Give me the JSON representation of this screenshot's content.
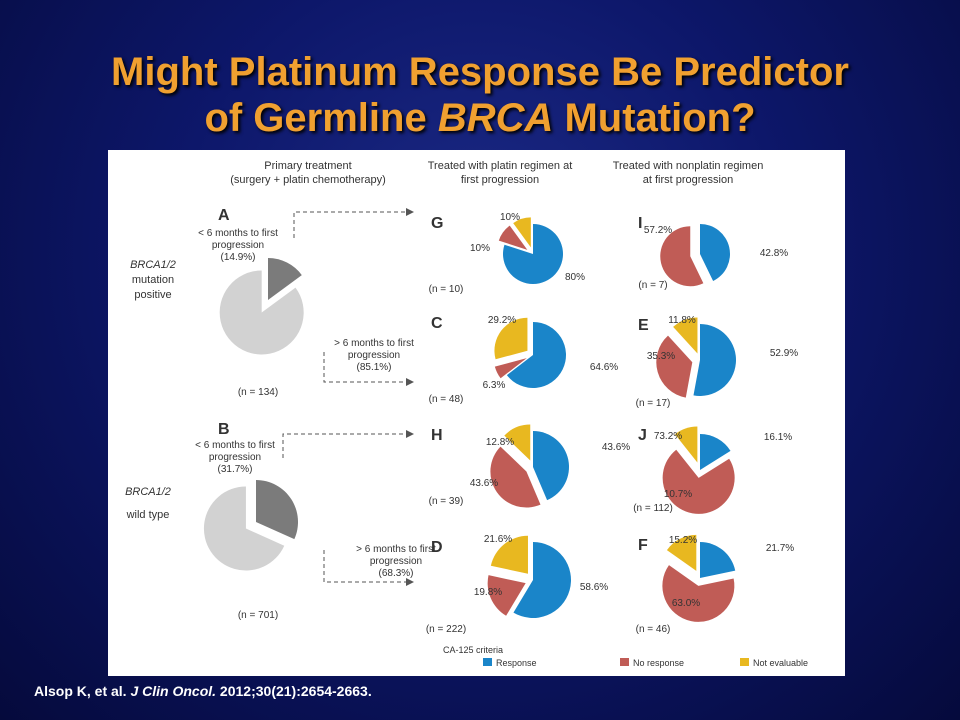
{
  "title": {
    "line1": "Might Platinum Response Be Predictor",
    "line2_prefix": "of Germline ",
    "line2_italic": "BRCA",
    "line2_suffix": " Mutation?"
  },
  "citation": {
    "prefix": "Alsop K, et al. ",
    "journal": "J Clin Oncol.",
    "suffix": " 2012;30(21):2654-2663."
  },
  "colors": {
    "response": "#1a85c9",
    "no_response": "#c05c56",
    "not_evaluable": "#e8b820",
    "short_progression": "#7b7b7b",
    "long_progression": "#d2d2d2",
    "arrow": "#555555"
  },
  "headers": {
    "primary": [
      "Primary treatment",
      "(surgery + platin chemotherapy)"
    ],
    "platin": [
      "Treated with platin regimen at",
      "first progression"
    ],
    "nonplatin": [
      "Treated with nonplatin regimen",
      "at first progression"
    ]
  },
  "row_labels": {
    "mutation": [
      "BRCA1/2",
      "mutation",
      "positive"
    ],
    "wildtype": [
      "BRCA1/2",
      "wild type"
    ]
  },
  "legend": {
    "title": "CA-125 criteria",
    "items": [
      "Response",
      "No response",
      "Not evaluable"
    ]
  },
  "chart_data": [
    {
      "type": "pie",
      "panel": "A",
      "n": "(n = 134)",
      "categories": [
        "< 6 months to first progression",
        "> 6 months to first progression"
      ],
      "values": [
        14.9,
        85.1
      ],
      "labels": [
        "< 6 months to first\nprogression\n(14.9%)",
        "> 6 months to first\nprogression\n(85.1%)"
      ]
    },
    {
      "type": "pie",
      "panel": "B",
      "n": "(n = 701)",
      "categories": [
        "< 6 months to first progression",
        "> 6 months to first progression"
      ],
      "values": [
        31.7,
        68.3
      ],
      "labels": [
        "< 6 months to first\nprogression\n(31.7%)",
        "> 6 months to first\nprogression\n(68.3%)"
      ]
    },
    {
      "type": "pie",
      "panel": "G",
      "n": "(n = 10)",
      "categories": [
        "Response",
        "No response",
        "Not evaluable"
      ],
      "values": [
        80,
        10,
        10
      ],
      "labels": [
        "80%",
        "10%",
        "10%"
      ]
    },
    {
      "type": "pie",
      "panel": "C",
      "n": "(n = 48)",
      "categories": [
        "Response",
        "No response",
        "Not evaluable"
      ],
      "values": [
        64.6,
        6.3,
        29.2
      ],
      "labels": [
        "64.6%",
        "6.3%",
        "29.2%"
      ]
    },
    {
      "type": "pie",
      "panel": "H",
      "n": "(n = 39)",
      "categories": [
        "Response",
        "No response",
        "Not evaluable"
      ],
      "values": [
        43.6,
        43.6,
        12.8
      ],
      "labels": [
        "43.6%",
        "43.6%",
        "12.8%"
      ]
    },
    {
      "type": "pie",
      "panel": "D",
      "n": "(n = 222)",
      "categories": [
        "Response",
        "No response",
        "Not evaluable"
      ],
      "values": [
        58.6,
        19.8,
        21.6
      ],
      "labels": [
        "58.6%",
        "19.8%",
        "21.6%"
      ]
    },
    {
      "type": "pie",
      "panel": "I",
      "n": "(n = 7)",
      "categories": [
        "Response",
        "No response"
      ],
      "values": [
        42.8,
        57.2
      ],
      "labels": [
        "42.8%",
        "57.2%"
      ]
    },
    {
      "type": "pie",
      "panel": "E",
      "n": "(n = 17)",
      "categories": [
        "Response",
        "No response",
        "Not evaluable"
      ],
      "values": [
        52.9,
        35.3,
        11.8
      ],
      "labels": [
        "52.9%",
        "35.3%",
        "11.8%"
      ]
    },
    {
      "type": "pie",
      "panel": "J",
      "n": "(n = 112)",
      "categories": [
        "Response",
        "No response",
        "Not evaluable"
      ],
      "values": [
        16.1,
        73.2,
        10.7
      ],
      "labels": [
        "16.1%",
        "73.2%",
        "10.7%"
      ]
    },
    {
      "type": "pie",
      "panel": "F",
      "n": "(n = 46)",
      "categories": [
        "Response",
        "No response",
        "Not evaluable"
      ],
      "values": [
        21.7,
        63.0,
        15.2
      ],
      "labels": [
        "21.7%",
        "63.0%",
        "15.2%"
      ]
    }
  ]
}
